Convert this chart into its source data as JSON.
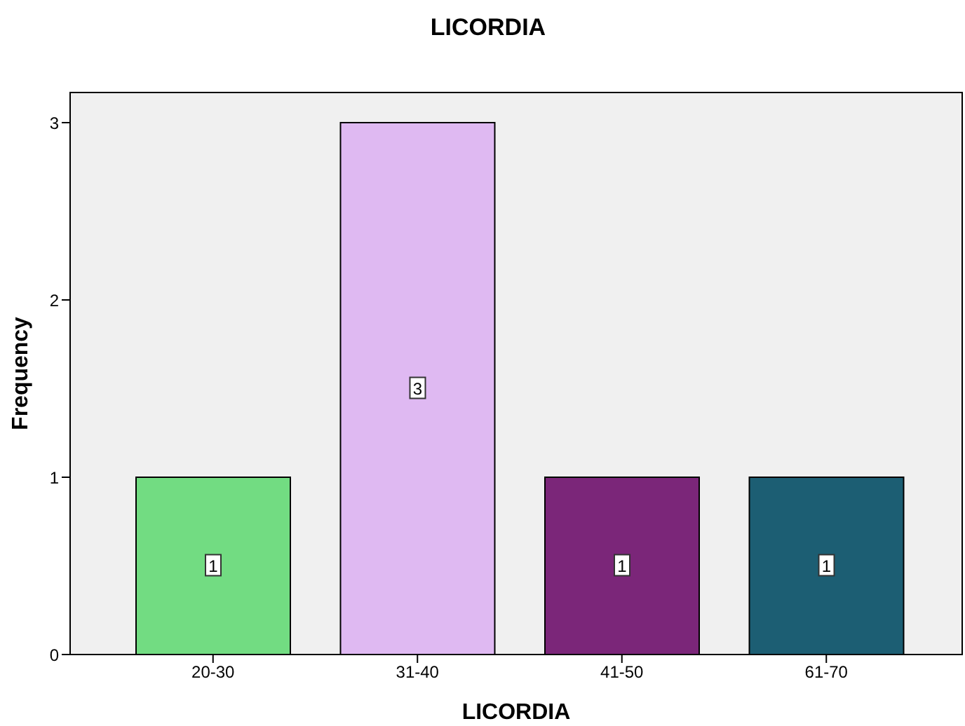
{
  "chart_data": {
    "type": "bar",
    "title": "LICORDIA",
    "xlabel": "LICORDIA",
    "ylabel": "Frequency",
    "categories": [
      "20-30",
      "31-40",
      "41-50",
      "61-70"
    ],
    "values": [
      1,
      3,
      1,
      1
    ],
    "colors": [
      "#72dc82",
      "#dfb9f2",
      "#7b2679",
      "#1c5e73"
    ],
    "ylim": [
      0,
      3.17
    ],
    "yticks": [
      0,
      1,
      2,
      3
    ],
    "data_labels": true
  }
}
